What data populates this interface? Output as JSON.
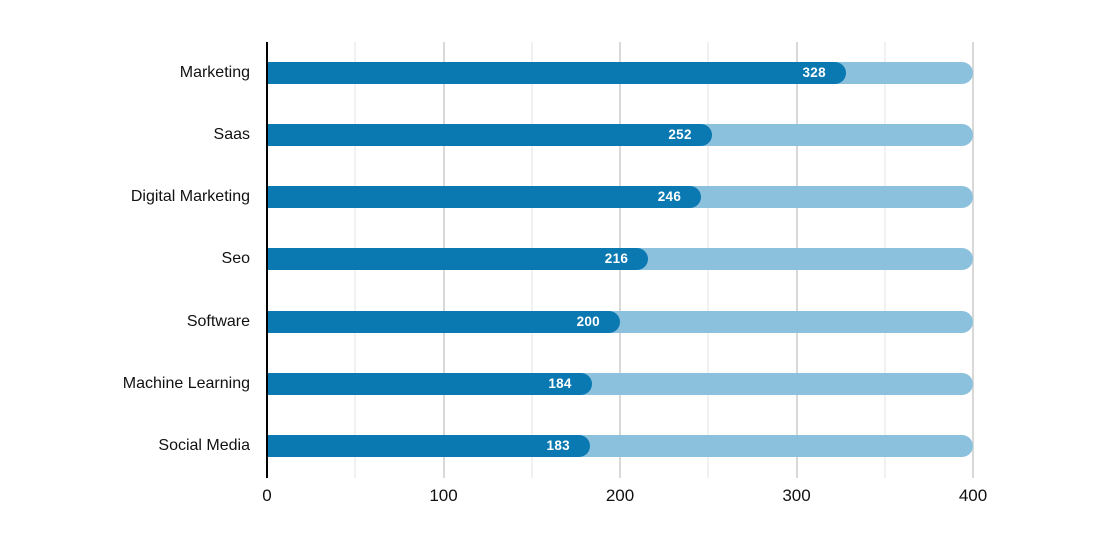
{
  "chart_data": {
    "type": "bar",
    "orientation": "horizontal",
    "title": "",
    "xlabel": "",
    "ylabel": "",
    "categories": [
      "Marketing",
      "Saas",
      "Digital Marketing",
      "Seo",
      "Software",
      "Machine Learning",
      "Social Media"
    ],
    "values": [
      328,
      252,
      246,
      216,
      200,
      184,
      183
    ],
    "track_max": 400,
    "xlim": [
      0,
      400
    ],
    "x_ticks": [
      "0",
      "100",
      "200",
      "300",
      "400"
    ],
    "x_tick_values": [
      0,
      100,
      200,
      300,
      400
    ],
    "minor_grid_step": 50,
    "grid": "vertical",
    "legend": "none",
    "colors": {
      "bar": "#0b79b1",
      "track": "#8cc1de",
      "grid_minor": "#f1f1f1",
      "grid_major": "#d8d8d8",
      "axis": "#000000",
      "value_label": "#ffffff",
      "category_label": "#111111",
      "tick_label": "#111111",
      "background": "#ffffff"
    }
  }
}
